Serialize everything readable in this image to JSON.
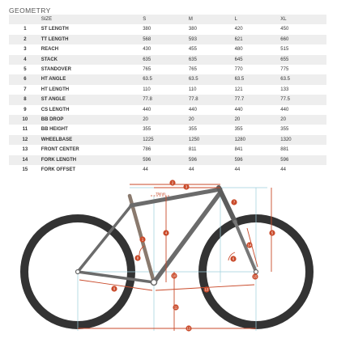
{
  "title": "GEOMETRY",
  "table": {
    "headers": [
      "",
      "SIZE",
      "S",
      "M",
      "L",
      "XL"
    ],
    "rows": [
      {
        "num": "1",
        "name": "ST LENGTH",
        "values": [
          "380",
          "380",
          "420",
          "450"
        ]
      },
      {
        "num": "2",
        "name": "TT LENGTH",
        "values": [
          "568",
          "593",
          "621",
          "660"
        ]
      },
      {
        "num": "3",
        "name": "REACH",
        "values": [
          "430",
          "455",
          "480",
          "515"
        ]
      },
      {
        "num": "4",
        "name": "STACK",
        "values": [
          "635",
          "635",
          "645",
          "655"
        ]
      },
      {
        "num": "5",
        "name": "STANDOVER",
        "values": [
          "765",
          "765",
          "770",
          "775"
        ]
      },
      {
        "num": "6",
        "name": "HT ANGLE",
        "values": [
          "63.5",
          "63.5",
          "63.5",
          "63.5"
        ]
      },
      {
        "num": "7",
        "name": "HT LENGTH",
        "values": [
          "110",
          "110",
          "121",
          "133"
        ]
      },
      {
        "num": "8",
        "name": "ST ANGLE",
        "values": [
          "77.8",
          "77.8",
          "77.7",
          "77.5"
        ]
      },
      {
        "num": "9",
        "name": "CS LENGTH",
        "values": [
          "440",
          "440",
          "440",
          "440"
        ]
      },
      {
        "num": "10",
        "name": "BB DROP",
        "values": [
          "20",
          "20",
          "20",
          "20"
        ]
      },
      {
        "num": "11",
        "name": "BB HEIGHT",
        "values": [
          "355",
          "355",
          "355",
          "355"
        ]
      },
      {
        "num": "12",
        "name": "WHEELBASE",
        "values": [
          "1225",
          "1250",
          "1280",
          "1320"
        ]
      },
      {
        "num": "13",
        "name": "FRONT CENTER",
        "values": [
          "786",
          "811",
          "841",
          "881"
        ]
      },
      {
        "num": "14",
        "name": "FORK LENGTH",
        "values": [
          "596",
          "596",
          "596",
          "596"
        ]
      },
      {
        "num": "15",
        "name": "FORK OFFSET",
        "values": [
          "44",
          "44",
          "44",
          "44"
        ]
      }
    ]
  },
  "diagram": {
    "seatpost_dim_label": "75mm",
    "callouts": [
      "1",
      "2",
      "3",
      "4",
      "5",
      "6",
      "7",
      "8",
      "9",
      "10",
      "11",
      "12",
      "13",
      "14",
      "15"
    ],
    "colors": {
      "frame": "#6b6b6b",
      "seat_tube": "#8a7a6e",
      "tire": "#3a3a3a",
      "callout": "#c94a2a",
      "guide": "#9ccfdc"
    }
  }
}
